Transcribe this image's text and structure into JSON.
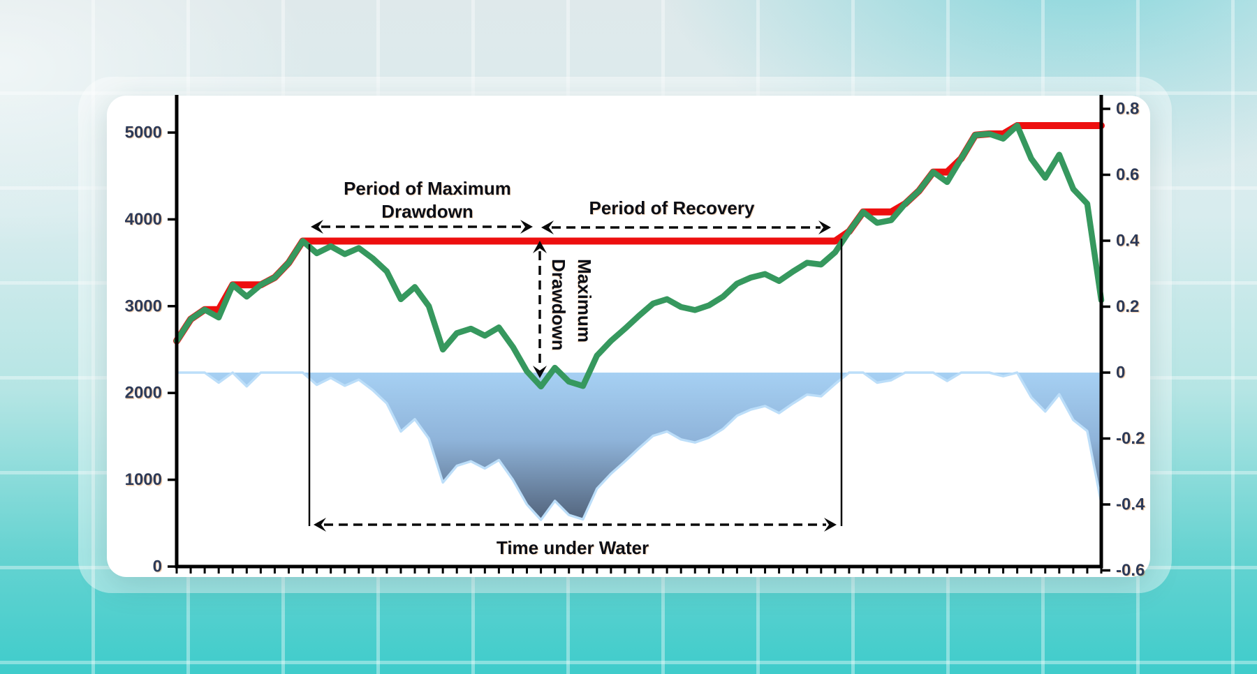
{
  "chart_data": {
    "type": "line",
    "n_points": 67,
    "left_axis": {
      "tick_labels": [
        "5000",
        "4000",
        "3000",
        "2000",
        "1000",
        "0"
      ],
      "tick_values": [
        5000,
        4000,
        3000,
        2000,
        1000,
        0
      ],
      "range": [
        0,
        5420
      ]
    },
    "right_axis": {
      "tick_labels": [
        "0.8",
        "0.6",
        "0.4",
        "0.2",
        "0",
        "-0.2",
        "-0.4",
        "-0.6"
      ],
      "tick_values": [
        0.8,
        0.6,
        0.4,
        0.2,
        0,
        -0.2,
        -0.4,
        -0.6
      ],
      "range": [
        -0.607,
        0.838
      ]
    },
    "x_axis": {
      "tick_count": 67,
      "labels_visible": false
    },
    "series": [
      {
        "name": "running-maximum",
        "role": "running-maximum",
        "axis": "left",
        "color": "#ed0f0f",
        "values": [
          2600,
          2850,
          2960,
          2960,
          3245,
          3245,
          3245,
          3330,
          3500,
          3750,
          3750,
          3750,
          3750,
          3750,
          3750,
          3750,
          3750,
          3750,
          3750,
          3750,
          3750,
          3750,
          3750,
          3750,
          3750,
          3750,
          3750,
          3750,
          3750,
          3750,
          3750,
          3750,
          3750,
          3750,
          3750,
          3750,
          3750,
          3750,
          3750,
          3750,
          3750,
          3750,
          3750,
          3750,
          3750,
          3750,
          3750,
          3750,
          3860,
          4085,
          4085,
          4085,
          4180,
          4330,
          4545,
          4545,
          4700,
          4970,
          4985,
          4985,
          5080,
          5080,
          5080,
          5080,
          5080,
          5080,
          5080
        ]
      },
      {
        "name": "equity-curve",
        "role": "equity",
        "axis": "left",
        "color": "#36985e",
        "values": [
          2600,
          2850,
          2960,
          2870,
          3245,
          3110,
          3245,
          3330,
          3500,
          3750,
          3610,
          3690,
          3600,
          3670,
          3550,
          3400,
          3080,
          3220,
          3000,
          2500,
          2690,
          2740,
          2660,
          2755,
          2530,
          2250,
          2075,
          2290,
          2130,
          2080,
          2430,
          2600,
          2740,
          2890,
          3030,
          3080,
          2990,
          2955,
          3010,
          3110,
          3260,
          3330,
          3370,
          3290,
          3400,
          3500,
          3480,
          3620,
          3860,
          4085,
          3960,
          3990,
          4180,
          4330,
          4545,
          4430,
          4700,
          4970,
          4985,
          4930,
          5080,
          4700,
          4480,
          4745,
          4350,
          4180,
          3070
        ]
      },
      {
        "name": "drawdown",
        "role": "drawdown",
        "axis": "right",
        "outline_color": "#bcdef9",
        "gradient": [
          "#a6d0f3",
          "#8fb4da",
          "#51627a"
        ],
        "values": [
          0,
          0,
          0,
          -0.0304,
          0,
          -0.0416,
          0,
          0,
          0,
          0,
          -0.0373,
          -0.016,
          -0.04,
          -0.0213,
          -0.0533,
          -0.0933,
          -0.1787,
          -0.1413,
          -0.2,
          -0.3333,
          -0.2827,
          -0.2693,
          -0.2907,
          -0.2653,
          -0.3253,
          -0.4,
          -0.4467,
          -0.3893,
          -0.432,
          -0.4453,
          -0.352,
          -0.3067,
          -0.2693,
          -0.2293,
          -0.192,
          -0.1787,
          -0.2027,
          -0.212,
          -0.1973,
          -0.1707,
          -0.1307,
          -0.112,
          -0.1013,
          -0.1227,
          -0.0933,
          -0.0667,
          -0.072,
          -0.0347,
          0,
          0,
          -0.0306,
          -0.0233,
          0,
          0,
          0,
          -0.0253,
          0,
          0,
          0,
          -0.011,
          0,
          -0.0748,
          -0.1181,
          -0.0659,
          -0.1437,
          -0.1772,
          -0.3957
        ]
      }
    ],
    "summary": {
      "peak_before_drawdown": 3750,
      "trough_value": 2075,
      "max_drawdown_pct": -0.4467,
      "final_peak_value": 5080
    },
    "annotations": {
      "pmd_line1": "Period of Maximum",
      "pmd_line2": "Drawdown",
      "recovery": "Period of Recovery",
      "mdd_line1": "Maximum",
      "mdd_line2": "Drawdown",
      "tuw": "Time under Water"
    }
  }
}
